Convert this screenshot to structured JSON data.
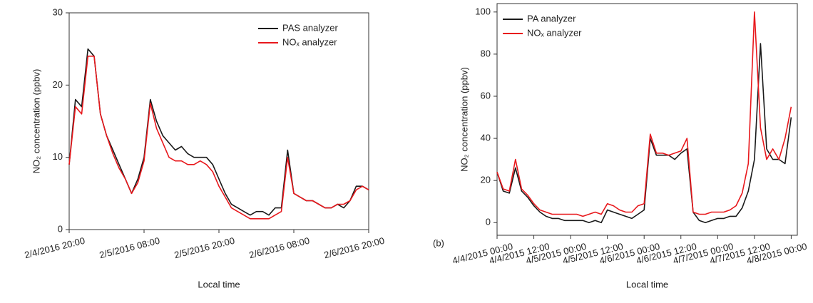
{
  "chart_data": [
    {
      "type": "line",
      "x_label": "Local time",
      "y_label": "NO₂ concentration (ppbv)",
      "x": [
        "2016-02-04T20:00",
        "2016-02-04T21:00",
        "2016-02-04T22:00",
        "2016-02-04T23:00",
        "2016-02-05T00:00",
        "2016-02-05T01:00",
        "2016-02-05T02:00",
        "2016-02-05T03:00",
        "2016-02-05T04:00",
        "2016-02-05T05:00",
        "2016-02-05T06:00",
        "2016-02-05T07:00",
        "2016-02-05T08:00",
        "2016-02-05T09:00",
        "2016-02-05T10:00",
        "2016-02-05T11:00",
        "2016-02-05T12:00",
        "2016-02-05T13:00",
        "2016-02-05T14:00",
        "2016-02-05T15:00",
        "2016-02-05T16:00",
        "2016-02-05T17:00",
        "2016-02-05T18:00",
        "2016-02-05T19:00",
        "2016-02-05T20:00",
        "2016-02-05T21:00",
        "2016-02-05T22:00",
        "2016-02-05T23:00",
        "2016-02-06T00:00",
        "2016-02-06T01:00",
        "2016-02-06T02:00",
        "2016-02-06T03:00",
        "2016-02-06T04:00",
        "2016-02-06T05:00",
        "2016-02-06T06:00",
        "2016-02-06T07:00",
        "2016-02-06T08:00",
        "2016-02-06T09:00",
        "2016-02-06T10:00",
        "2016-02-06T11:00",
        "2016-02-06T12:00",
        "2016-02-06T13:00",
        "2016-02-06T14:00",
        "2016-02-06T15:00",
        "2016-02-06T16:00",
        "2016-02-06T17:00",
        "2016-02-06T18:00",
        "2016-02-06T19:00",
        "2016-02-06T20:00"
      ],
      "series": [
        {
          "name": "PAS analyzer",
          "color": "#1a1a1a",
          "values": [
            9,
            18,
            17,
            25,
            24,
            16,
            13,
            11,
            9,
            7,
            5,
            7,
            10,
            18,
            15,
            13,
            12,
            11,
            11.5,
            10.5,
            10,
            10,
            10,
            9,
            7,
            5,
            3.5,
            3,
            2.5,
            2,
            2.5,
            2.5,
            2,
            3,
            3,
            11,
            5,
            4.5,
            4,
            4,
            3.5,
            3,
            3,
            3.5,
            3,
            4,
            6,
            6,
            5.5
          ]
        },
        {
          "name": "NOₓ analyzer",
          "color": "#e8181c",
          "values": [
            9,
            17,
            16,
            24,
            24,
            16,
            13,
            10.5,
            8.5,
            7,
            5,
            6.5,
            9.5,
            17.5,
            14,
            12,
            10,
            9.5,
            9.5,
            9,
            9,
            9.5,
            9,
            8,
            6,
            4.5,
            3,
            2.5,
            2,
            1.5,
            1.5,
            1.5,
            1.5,
            2,
            2.5,
            10,
            5,
            4.5,
            4,
            4,
            3.5,
            3,
            3,
            3.5,
            3.5,
            4,
            5.5,
            6,
            5.5
          ]
        }
      ],
      "xlim": [
        "2016-02-04T20:00",
        "2016-02-06T20:00"
      ],
      "xticks": [
        {
          "value": "2016-02-04T20:00",
          "label": "2/4/2016 20:00"
        },
        {
          "value": "2016-02-05T08:00",
          "label": "2/5/2016 08:00"
        },
        {
          "value": "2016-02-05T20:00",
          "label": "2/5/2016 20:00"
        },
        {
          "value": "2016-02-06T08:00",
          "label": "2/6/2016 08:00"
        },
        {
          "value": "2016-02-06T20:00",
          "label": "2/6/2016 20:00"
        }
      ],
      "ylim": [
        0,
        30
      ],
      "yticks": [
        0,
        10,
        20,
        30
      ],
      "legend": "upper right"
    },
    {
      "type": "line",
      "x_label": "Local time",
      "y_label": "NO₂ concentration (ppbv)",
      "panel_label": "(b)",
      "x": [
        "2015-04-04T00:00",
        "2015-04-04T02:00",
        "2015-04-04T04:00",
        "2015-04-04T06:00",
        "2015-04-04T08:00",
        "2015-04-04T10:00",
        "2015-04-04T12:00",
        "2015-04-04T14:00",
        "2015-04-04T16:00",
        "2015-04-04T18:00",
        "2015-04-04T20:00",
        "2015-04-04T22:00",
        "2015-04-05T00:00",
        "2015-04-05T02:00",
        "2015-04-05T04:00",
        "2015-04-05T06:00",
        "2015-04-05T08:00",
        "2015-04-05T10:00",
        "2015-04-05T12:00",
        "2015-04-05T14:00",
        "2015-04-05T16:00",
        "2015-04-05T18:00",
        "2015-04-05T20:00",
        "2015-04-05T22:00",
        "2015-04-06T00:00",
        "2015-04-06T02:00",
        "2015-04-06T04:00",
        "2015-04-06T06:00",
        "2015-04-06T08:00",
        "2015-04-06T10:00",
        "2015-04-06T12:00",
        "2015-04-06T14:00",
        "2015-04-06T16:00",
        "2015-04-06T18:00",
        "2015-04-06T20:00",
        "2015-04-06T22:00",
        "2015-04-07T00:00",
        "2015-04-07T02:00",
        "2015-04-07T04:00",
        "2015-04-07T06:00",
        "2015-04-07T08:00",
        "2015-04-07T10:00",
        "2015-04-07T12:00",
        "2015-04-07T14:00",
        "2015-04-07T16:00",
        "2015-04-07T18:00",
        "2015-04-07T20:00",
        "2015-04-07T22:00",
        "2015-04-08T00:00"
      ],
      "series": [
        {
          "name": "PA analyzer",
          "color": "#1a1a1a",
          "values": [
            24,
            15,
            14,
            26,
            15,
            12,
            8,
            5,
            3,
            2,
            2,
            1,
            1,
            1,
            1,
            0,
            1,
            0,
            6,
            5,
            4,
            3,
            2,
            4,
            6,
            40,
            32,
            32,
            32,
            30,
            33,
            35,
            5,
            1,
            0,
            1,
            2,
            2,
            3,
            3,
            7,
            15,
            30,
            85,
            35,
            30,
            30,
            28,
            50
          ]
        },
        {
          "name": "NOₓ analyzer",
          "color": "#e8181c",
          "values": [
            24,
            16,
            15,
            30,
            16,
            13,
            9,
            6,
            5,
            4,
            4,
            4,
            4,
            4,
            3,
            4,
            5,
            4,
            9,
            8,
            6,
            5,
            5,
            8,
            9,
            42,
            33,
            33,
            32,
            33,
            34,
            40,
            5,
            4,
            4,
            5,
            5,
            5,
            6,
            8,
            14,
            28,
            100,
            45,
            30,
            35,
            30,
            40,
            55
          ]
        }
      ],
      "xlim": [
        "2015-04-04T00:00",
        "2015-04-08T02:00"
      ],
      "xticks": [
        {
          "value": "2015-04-04T00:00",
          "label": "4/4/2015 00:00"
        },
        {
          "value": "2015-04-04T12:00",
          "label": "4/4/2015 12:00"
        },
        {
          "value": "2015-04-05T00:00",
          "label": "4/5/2015 00:00"
        },
        {
          "value": "2015-04-05T12:00",
          "label": "4/5/2015 12:00"
        },
        {
          "value": "2015-04-06T00:00",
          "label": "4/6/2015 00:00"
        },
        {
          "value": "2015-04-06T12:00",
          "label": "4/6/2015 12:00"
        },
        {
          "value": "2015-04-07T00:00",
          "label": "4/7/2015 00:00"
        },
        {
          "value": "2015-04-07T12:00",
          "label": "4/7/2015 12:00"
        },
        {
          "value": "2015-04-08T00:00",
          "label": "4/8/2015 00:00"
        }
      ],
      "ylim": [
        -6,
        104
      ],
      "yticks": [
        0,
        20,
        40,
        60,
        80,
        100
      ],
      "legend": "upper left"
    }
  ]
}
